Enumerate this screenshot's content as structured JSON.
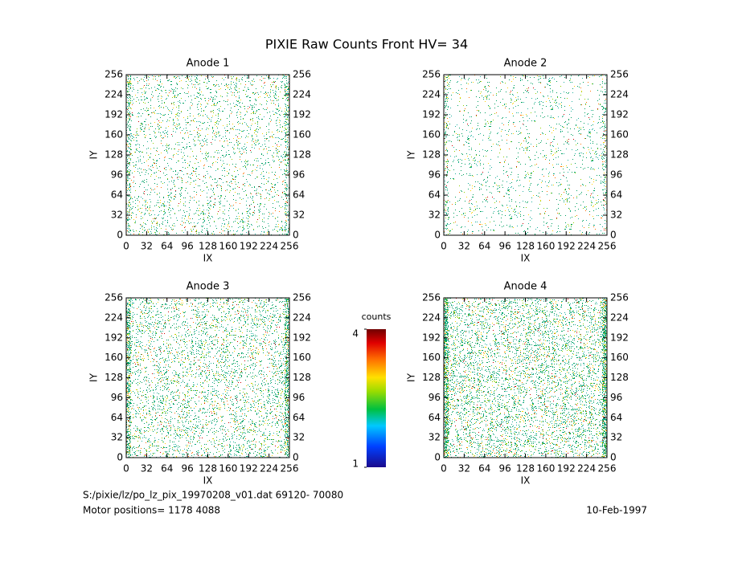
{
  "title": "PIXIE Raw Counts Front HV= 34",
  "chart_data": [
    {
      "type": "heatmap",
      "title": "Anode 1",
      "xlabel": "IX",
      "ylabel": "IY",
      "xlim": [
        0,
        256
      ],
      "ylim": [
        0,
        256
      ],
      "xticks": [
        0,
        32,
        64,
        96,
        128,
        160,
        192,
        224,
        256
      ],
      "yticks": [
        0,
        32,
        64,
        96,
        128,
        160,
        192,
        224,
        256
      ]
    },
    {
      "type": "heatmap",
      "title": "Anode 2",
      "xlabel": "IX",
      "ylabel": "IY",
      "xlim": [
        0,
        256
      ],
      "ylim": [
        0,
        256
      ],
      "xticks": [
        0,
        32,
        64,
        96,
        128,
        160,
        192,
        224,
        256
      ],
      "yticks": [
        0,
        32,
        64,
        96,
        128,
        160,
        192,
        224,
        256
      ]
    },
    {
      "type": "heatmap",
      "title": "Anode 3",
      "xlabel": "IX",
      "ylabel": "IY",
      "xlim": [
        0,
        256
      ],
      "ylim": [
        0,
        256
      ],
      "xticks": [
        0,
        32,
        64,
        96,
        128,
        160,
        192,
        224,
        256
      ],
      "yticks": [
        0,
        32,
        64,
        96,
        128,
        160,
        192,
        224,
        256
      ]
    },
    {
      "type": "heatmap",
      "title": "Anode 4",
      "xlabel": "IX",
      "ylabel": "IY",
      "xlim": [
        0,
        256
      ],
      "ylim": [
        0,
        256
      ],
      "xticks": [
        0,
        32,
        64,
        96,
        128,
        160,
        192,
        224,
        256
      ],
      "yticks": [
        0,
        32,
        64,
        96,
        128,
        160,
        192,
        224,
        256
      ]
    }
  ],
  "colorbar": {
    "label": "counts",
    "lim": [
      1,
      4
    ],
    "ticks": [
      1,
      4
    ]
  },
  "footer": {
    "file": "S:/pixie/lz/po_lz_pix_19970208_v01.dat   69120- 70080",
    "motor": "Motor positions= 1178 4088",
    "date": "10-Feb-1997"
  }
}
